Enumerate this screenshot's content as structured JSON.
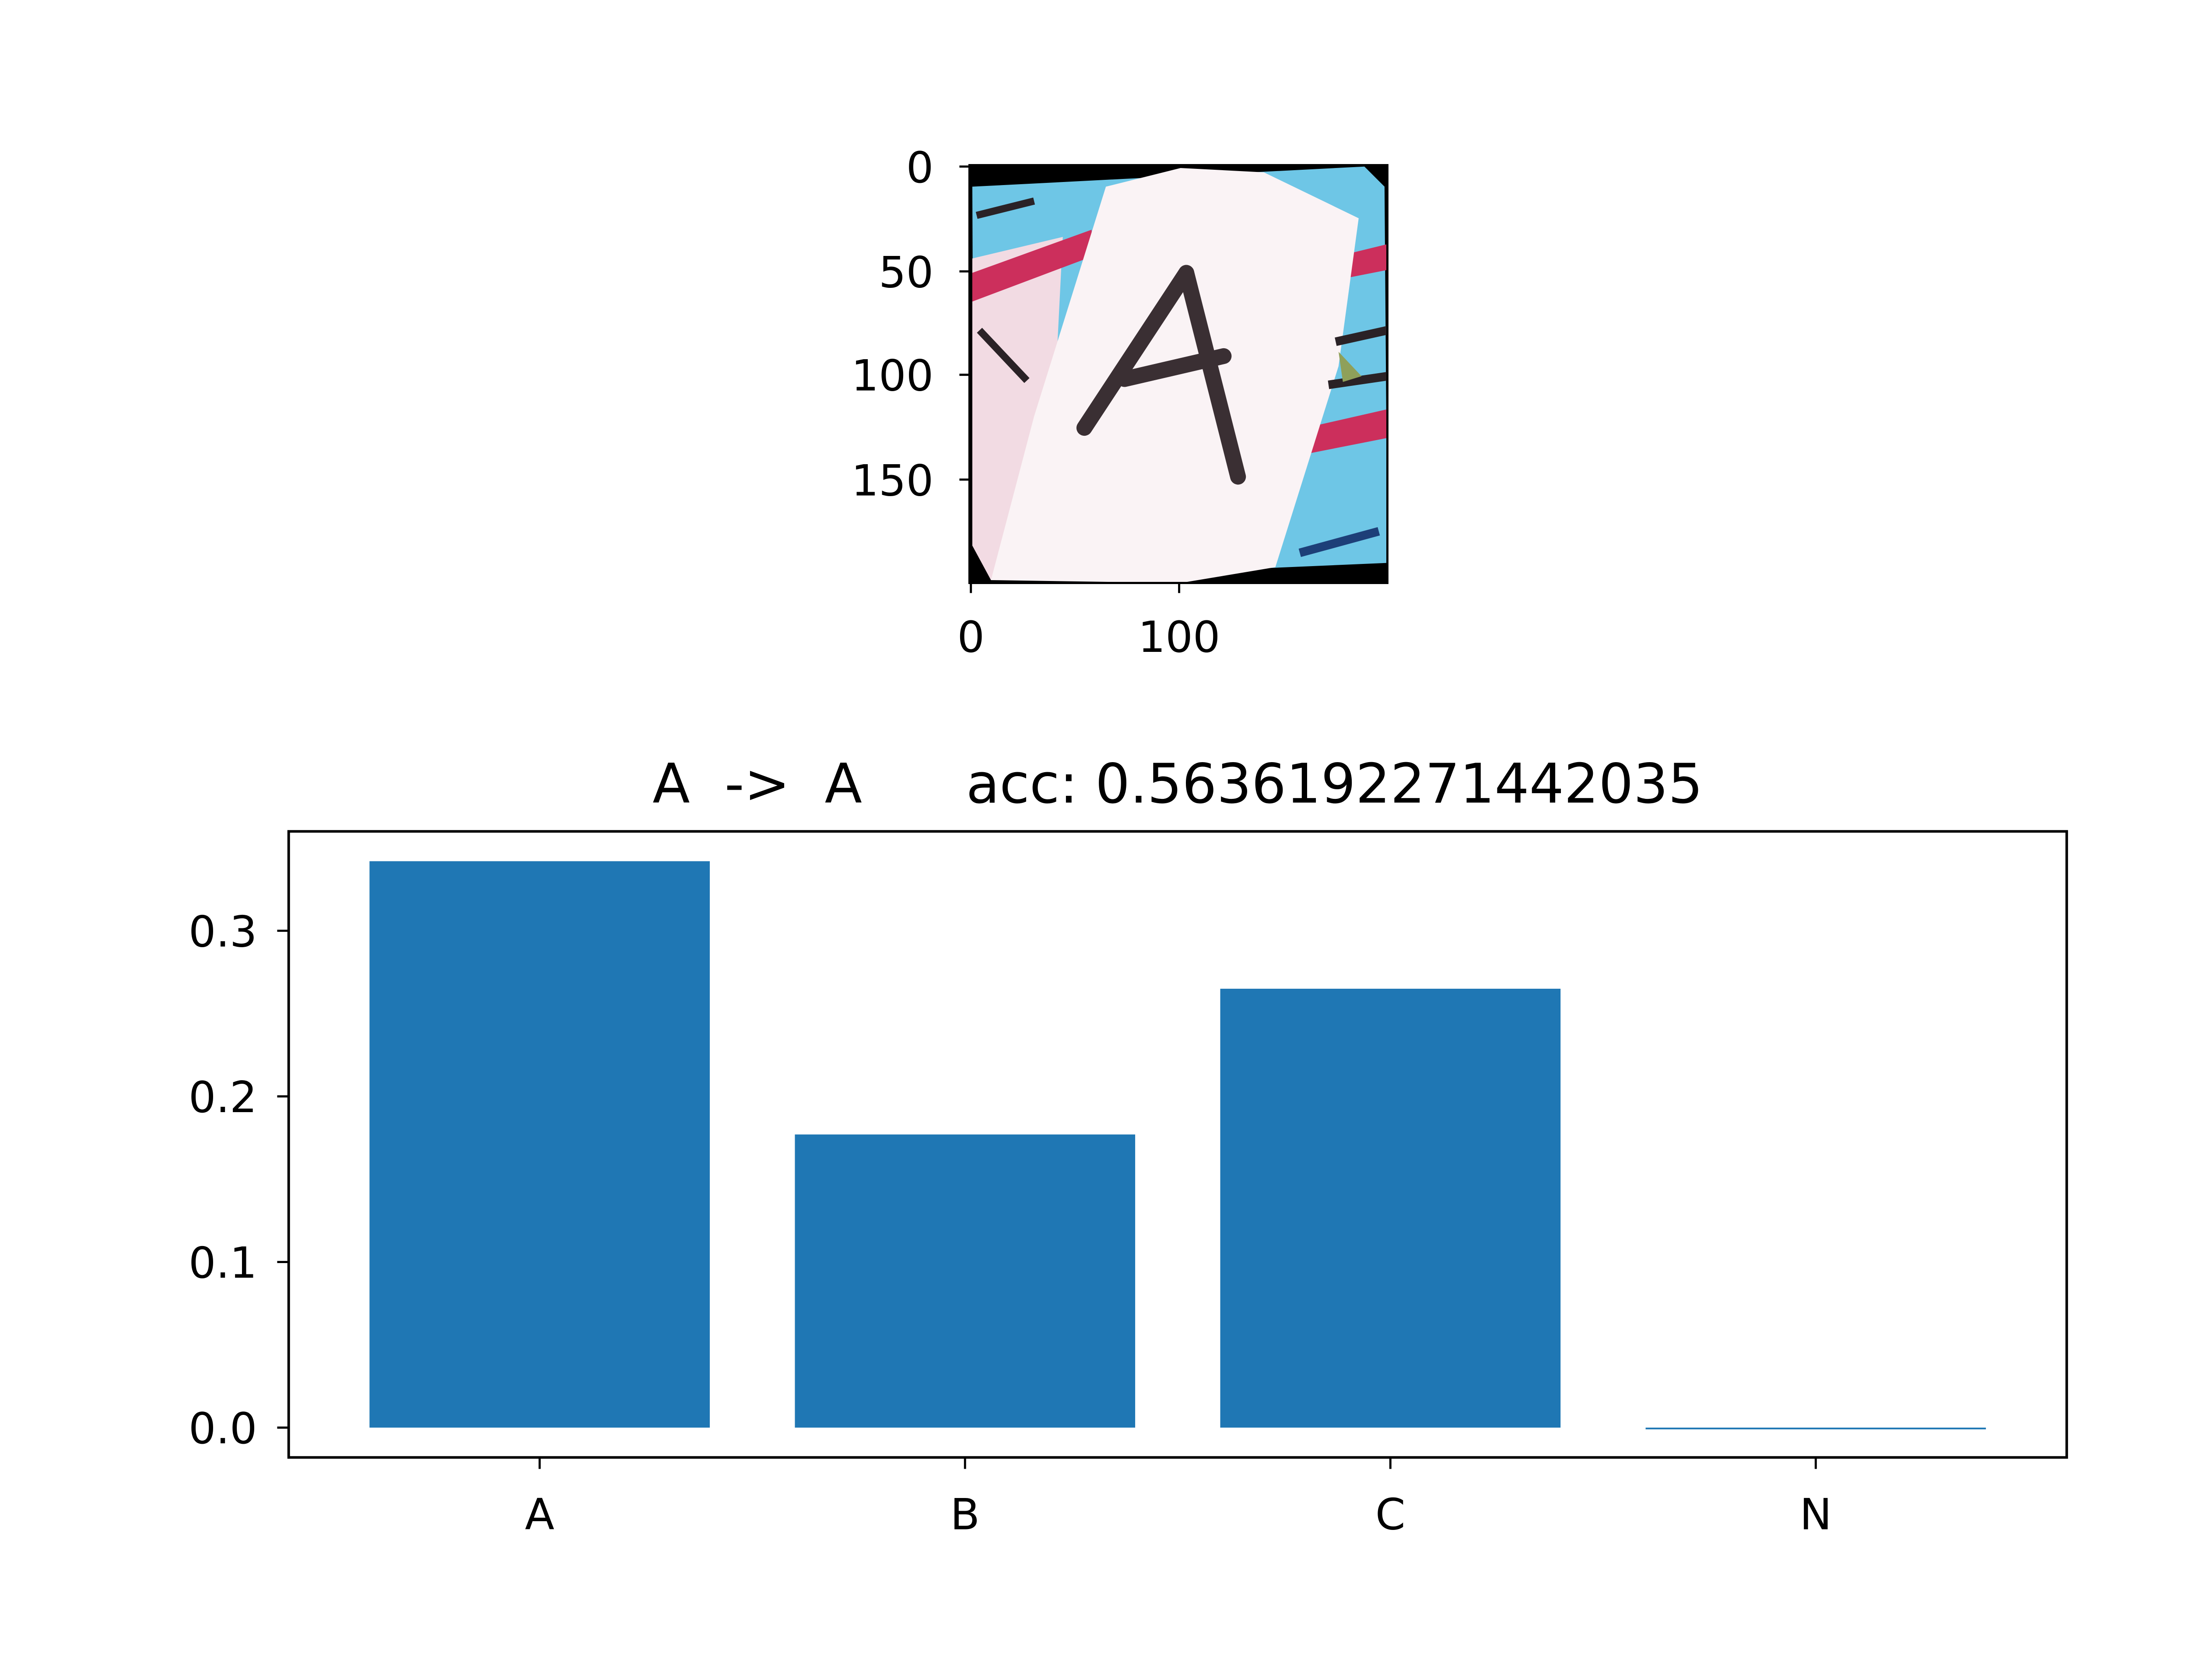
{
  "image_panel": {
    "content_letter": "A",
    "ylim": [
      0,
      200
    ],
    "xlim": [
      0,
      200
    ],
    "yticks": [
      "0",
      "50",
      "100",
      "150"
    ],
    "xticks": [
      "0",
      "100"
    ],
    "colors": {
      "background_blue": "#6ec6e6",
      "paper": "#faf3f5",
      "stripe_red": "#cc2f5c",
      "dark": "#2a2226",
      "border": "#000000"
    }
  },
  "chart_data": {
    "type": "bar",
    "title": "A  ->  A      acc: 0.5636192271442035",
    "categories": [
      "A",
      "B",
      "C",
      "N"
    ],
    "values": [
      0.342,
      0.177,
      0.265,
      0.0
    ],
    "ylim": [
      -0.018,
      0.36
    ],
    "yticks": [
      0.0,
      0.1,
      0.2,
      0.3
    ],
    "ytick_labels": [
      "0.0",
      "0.1",
      "0.2",
      "0.3"
    ],
    "xlabel": "",
    "ylabel": "",
    "grid": false,
    "colors": {
      "bar": "#1f77b4"
    }
  }
}
